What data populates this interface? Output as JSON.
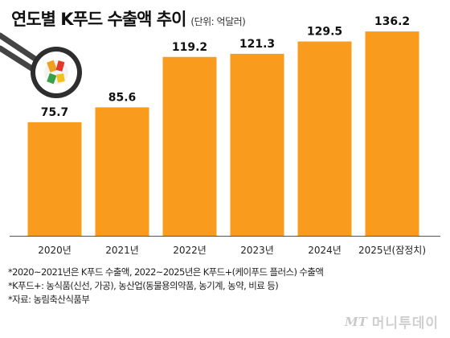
{
  "chart_data": {
    "type": "bar",
    "title": "연도별 K푸드 수출액 추이",
    "subtitle": "(단위: 억달러)",
    "categories": [
      "2020년",
      "2021년",
      "2022년",
      "2023년",
      "2024년",
      "2025년(잠정치)"
    ],
    "values": [
      75.7,
      85.6,
      119.2,
      121.3,
      129.5,
      136.2
    ],
    "data_labels": [
      "75.7",
      "85.6",
      "119.2",
      "121.3",
      "129.5",
      "136.2"
    ],
    "ylim": [
      0,
      140
    ],
    "grid": false,
    "legend": "none",
    "bar_color": "#F99B1C"
  },
  "notes": [
    "*2020~2021년은 K푸드 수출액, 2022~2025년은 K푸드+(케이푸드 플러스) 수출액",
    "*K푸드+: 농식품(신선, 가공), 농산업(동물용의약품, 농기계, 농약, 비료 등)",
    "*자료: 농림축산식품부"
  ],
  "logo": {
    "mark": "MT",
    "name": "머니투데이"
  },
  "illustration": "sushi-roll-with-chopsticks-icon"
}
